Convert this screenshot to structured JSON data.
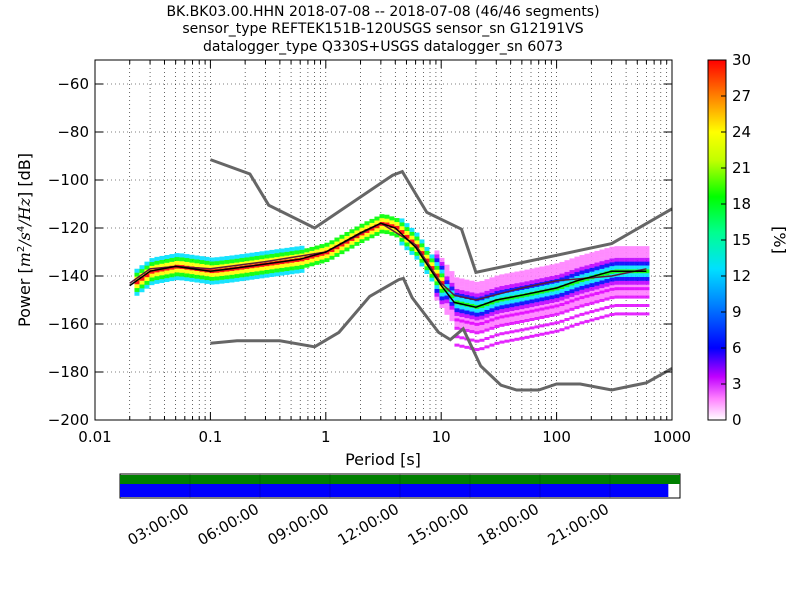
{
  "title": {
    "line1": "BK.BK03.00.HHN   2018-07-08 -- 2018-07-08  (46/46 segments)",
    "line2": "sensor_type REFTEK151B-120USGS sensor_sn G12191VS",
    "line3": "datalogger_type Q330S+USGS datalogger_sn 6073"
  },
  "colors": {
    "noise_model": "#666666",
    "mean_line": "#000000",
    "mode_line": "#5b1a3a",
    "coverage_top": "#008000",
    "coverage_bottom": "#0000ff"
  },
  "chart_data": {
    "type": "heatmap",
    "subtype": "probabilistic power spectral density",
    "xscale": "log",
    "xlabel": "Period [s]",
    "ylabel_parts": [
      "Power [",
      "m",
      "2",
      "/",
      "s",
      "4",
      "/",
      "Hz",
      "] [dB]"
    ],
    "xlim": [
      0.01,
      1000
    ],
    "ylim": [
      -200,
      -50
    ],
    "xticks": [
      {
        "value": 0.01,
        "label": "0.01"
      },
      {
        "value": 0.1,
        "label": "0.1"
      },
      {
        "value": 1,
        "label": "1"
      },
      {
        "value": 10,
        "label": "10"
      },
      {
        "value": 100,
        "label": "100"
      },
      {
        "value": 1000,
        "label": "1000"
      }
    ],
    "yticks": [
      {
        "value": -60,
        "label": "−60"
      },
      {
        "value": -80,
        "label": "−80"
      },
      {
        "value": -100,
        "label": "−100"
      },
      {
        "value": -120,
        "label": "−120"
      },
      {
        "value": -140,
        "label": "−140"
      },
      {
        "value": -160,
        "label": "−160"
      },
      {
        "value": -180,
        "label": "−180"
      },
      {
        "value": -200,
        "label": "−200"
      }
    ],
    "grid": true,
    "colorbar": {
      "label": "[%]",
      "range": [
        0,
        30
      ],
      "ticks": [
        {
          "value": 0,
          "label": "0"
        },
        {
          "value": 3,
          "label": "3"
        },
        {
          "value": 6,
          "label": "6"
        },
        {
          "value": 9,
          "label": "9"
        },
        {
          "value": 12,
          "label": "12"
        },
        {
          "value": 15,
          "label": "15"
        },
        {
          "value": 18,
          "label": "18"
        },
        {
          "value": 21,
          "label": "21"
        },
        {
          "value": 24,
          "label": "24"
        },
        {
          "value": 27,
          "label": "27"
        },
        {
          "value": 30,
          "label": "30"
        }
      ]
    },
    "high_noise_model": [
      [
        0.1,
        -91.5
      ],
      [
        0.22,
        -97.5
      ],
      [
        0.32,
        -110.5
      ],
      [
        0.8,
        -120
      ],
      [
        3.8,
        -98
      ],
      [
        4.6,
        -96.5
      ],
      [
        7.5,
        -113.5
      ],
      [
        15,
        -120.5
      ],
      [
        20,
        -138.5
      ],
      [
        300,
        -126.5
      ],
      [
        1000,
        -112
      ]
    ],
    "low_noise_model": [
      [
        0.1,
        -168
      ],
      [
        0.17,
        -167
      ],
      [
        0.4,
        -167
      ],
      [
        0.8,
        -169.5
      ],
      [
        1.3,
        -163.5
      ],
      [
        2.4,
        -148.5
      ],
      [
        4.3,
        -141.5
      ],
      [
        4.7,
        -141
      ],
      [
        5.6,
        -149
      ],
      [
        9.5,
        -163.5
      ],
      [
        12,
        -166.5
      ],
      [
        15.5,
        -162
      ],
      [
        22,
        -177.5
      ],
      [
        33,
        -185.5
      ],
      [
        45,
        -187.5
      ],
      [
        70,
        -187.5
      ],
      [
        100,
        -185
      ],
      [
        160,
        -185
      ],
      [
        300,
        -187.5
      ],
      [
        600,
        -184.5
      ],
      [
        1000,
        -178.5
      ]
    ],
    "mean_line": [
      [
        0.02,
        -144
      ],
      [
        0.03,
        -138
      ],
      [
        0.05,
        -136
      ],
      [
        0.1,
        -138
      ],
      [
        0.15,
        -137
      ],
      [
        0.3,
        -135
      ],
      [
        0.6,
        -133
      ],
      [
        1.0,
        -130
      ],
      [
        2.0,
        -122
      ],
      [
        3.0,
        -118
      ],
      [
        4.0,
        -120
      ],
      [
        6.0,
        -128
      ],
      [
        8.0,
        -137
      ],
      [
        10.0,
        -144
      ],
      [
        13.0,
        -151
      ],
      [
        20.0,
        -153
      ],
      [
        30.0,
        -150
      ],
      [
        50.0,
        -148
      ],
      [
        100.0,
        -145
      ],
      [
        150.0,
        -142
      ],
      [
        300.0,
        -138
      ],
      [
        600.0,
        -138
      ]
    ],
    "mode_line": [
      [
        0.02,
        -143
      ],
      [
        0.03,
        -137
      ],
      [
        0.05,
        -136
      ],
      [
        0.1,
        -137
      ],
      [
        0.3,
        -134
      ],
      [
        1.0,
        -130
      ],
      [
        3.0,
        -118
      ],
      [
        6.0,
        -127
      ],
      [
        10.0,
        -143
      ],
      [
        13.0,
        -148
      ],
      [
        20.0,
        -150
      ],
      [
        50.0,
        -145
      ],
      [
        100.0,
        -142
      ],
      [
        300.0,
        -140
      ],
      [
        600.0,
        -137
      ]
    ],
    "time_axis": {
      "labels": [
        "03:00:00",
        "06:00:00",
        "09:00:00",
        "12:00:00",
        "15:00:00",
        "18:00:00",
        "21:00:00"
      ],
      "hours": [
        3,
        6,
        9,
        12,
        15,
        18,
        21
      ],
      "range_hours": [
        0,
        24
      ],
      "coverage_end_hours": 23.5
    }
  }
}
